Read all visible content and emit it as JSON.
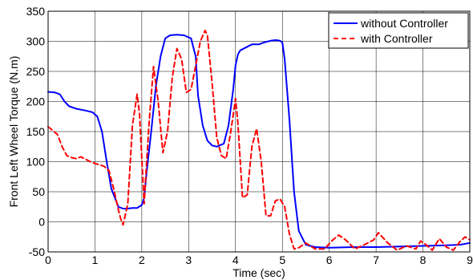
{
  "chart_data": {
    "type": "line",
    "title": "",
    "xlabel": "Time (sec)",
    "ylabel": "Front Left Wheel Torque (N.m)",
    "xlim": [
      0,
      9
    ],
    "ylim": [
      -50,
      350
    ],
    "xticks": [
      0,
      1,
      2,
      3,
      4,
      5,
      6,
      7,
      8,
      9
    ],
    "yticks": [
      -50,
      0,
      50,
      100,
      150,
      200,
      250,
      300,
      350
    ],
    "grid": true,
    "legend_position": "top-right",
    "series": [
      {
        "name": "without Controller",
        "color": "#0000ff",
        "style": "solid",
        "x": [
          0,
          0.15,
          0.25,
          0.35,
          0.45,
          0.6,
          0.8,
          0.95,
          1.05,
          1.15,
          1.25,
          1.35,
          1.5,
          1.6,
          1.7,
          1.8,
          1.9,
          2.0,
          2.05,
          2.1,
          2.2,
          2.3,
          2.4,
          2.5,
          2.6,
          2.75,
          2.9,
          3.05,
          3.15,
          3.2,
          3.3,
          3.4,
          3.5,
          3.6,
          3.75,
          3.85,
          3.95,
          4.0,
          4.05,
          4.1,
          4.2,
          4.35,
          4.5,
          4.6,
          4.75,
          4.85,
          4.95,
          5.0,
          5.05,
          5.15,
          5.25,
          5.35,
          5.5,
          5.7,
          6.0,
          6.5,
          7.0,
          7.5,
          8.0,
          8.5,
          8.8,
          9.0
        ],
        "values": [
          216,
          215,
          212,
          200,
          192,
          188,
          185,
          182,
          175,
          150,
          100,
          55,
          25,
          22,
          22,
          23,
          23,
          28,
          40,
          80,
          150,
          225,
          275,
          305,
          310,
          311,
          310,
          305,
          275,
          210,
          160,
          135,
          127,
          125,
          130,
          160,
          220,
          260,
          278,
          285,
          289,
          295,
          295,
          298,
          301,
          302,
          301,
          298,
          270,
          170,
          50,
          -15,
          -38,
          -42,
          -43,
          -42,
          -42,
          -41,
          -40,
          -39,
          -38,
          -35
        ]
      },
      {
        "name": "with Controller",
        "color": "#ff0000",
        "style": "dashed",
        "x": [
          0,
          0.1,
          0.2,
          0.3,
          0.4,
          0.5,
          0.6,
          0.7,
          0.8,
          0.9,
          1.0,
          1.1,
          1.2,
          1.3,
          1.4,
          1.5,
          1.55,
          1.6,
          1.7,
          1.8,
          1.9,
          1.95,
          2.05,
          2.15,
          2.25,
          2.35,
          2.45,
          2.55,
          2.65,
          2.75,
          2.85,
          2.95,
          3.05,
          3.15,
          3.25,
          3.35,
          3.4,
          3.5,
          3.6,
          3.7,
          3.8,
          3.9,
          4.0,
          4.05,
          4.15,
          4.25,
          4.35,
          4.45,
          4.55,
          4.65,
          4.75,
          4.85,
          4.95,
          5.05,
          5.15,
          5.25,
          5.35,
          5.5,
          5.7,
          5.9,
          6.05,
          6.2,
          6.35,
          6.55,
          6.75,
          6.95,
          7.05,
          7.25,
          7.45,
          7.65,
          7.85,
          7.95,
          8.05,
          8.2,
          8.35,
          8.5,
          8.65,
          8.8,
          8.9,
          9.0
        ],
        "values": [
          158,
          152,
          145,
          125,
          110,
          107,
          105,
          108,
          104,
          100,
          97,
          95,
          92,
          85,
          55,
          20,
          5,
          -5,
          30,
          160,
          212,
          180,
          30,
          160,
          258,
          200,
          115,
          150,
          240,
          288,
          270,
          215,
          220,
          260,
          300,
          318,
          310,
          230,
          140,
          110,
          105,
          150,
          205,
          165,
          40,
          45,
          125,
          155,
          100,
          10,
          10,
          35,
          38,
          25,
          -20,
          -45,
          -43,
          -35,
          -45,
          -45,
          -32,
          -22,
          -30,
          -45,
          -38,
          -30,
          -18,
          -35,
          -47,
          -40,
          -45,
          -32,
          -37,
          -47,
          -28,
          -42,
          -47,
          -32,
          -25,
          -30
        ]
      }
    ]
  }
}
